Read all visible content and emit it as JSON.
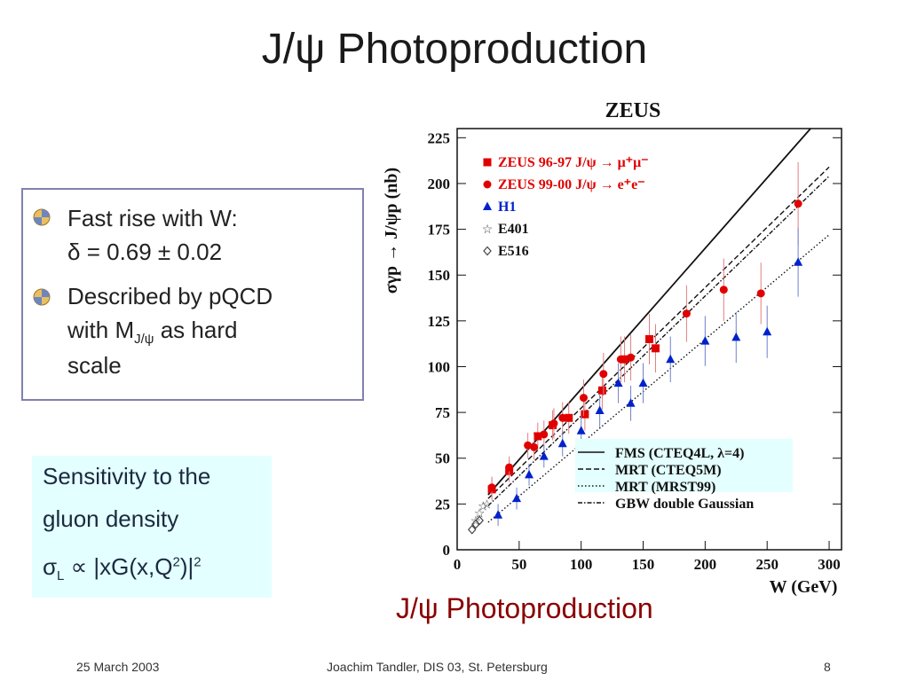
{
  "slide": {
    "title": "J/ψ Photoproduction",
    "bullet1_line1": "Fast rise with W:",
    "bullet1_line2": "δ = 0.69 ± 0.02",
    "bullet2_line1": "Described by pQCD",
    "bullet2_line2_pre": "with M",
    "bullet2_line2_sub": "J/ψ",
    "bullet2_line2_post": " as hard",
    "bullet2_line3": "scale",
    "sens_line1": "Sensitivity to the",
    "sens_line2": "gluon density",
    "sens_formula": "σ",
    "sens_formula_sub": "L",
    "sens_formula_rest": " ∝ |xG(x,Q",
    "sens_formula_sup": "2",
    "sens_formula_end": ")|",
    "sens_formula_sup2": "2",
    "caption": "J/ψ Photoproduction",
    "footer_date": "25 March 2003",
    "footer_author": "Joachim Tandler, DIS 03, St. Petersburg",
    "footer_page": "8"
  },
  "chart_data": {
    "type": "scatter",
    "title": "ZEUS",
    "xlabel": "W (GeV)",
    "ylabel": "σγp → J/ψp (nb)",
    "xlim": [
      0,
      310
    ],
    "ylim": [
      0,
      230
    ],
    "xticks": [
      0,
      50,
      100,
      150,
      200,
      250,
      300
    ],
    "yticks": [
      0,
      25,
      50,
      75,
      100,
      125,
      150,
      175,
      200,
      225
    ],
    "legend_position": "top-left",
    "colors": {
      "zeus": "#e00000",
      "h1": "#0022cc",
      "other": "#444444"
    },
    "series": [
      {
        "name": "ZEUS 96-97 J/ψ → μ⁺μ⁻",
        "marker": "square",
        "x": [
          28,
          42,
          65,
          77,
          90,
          103,
          117,
          135,
          155,
          160
        ],
        "y": [
          33,
          43,
          62,
          68,
          72,
          74,
          87,
          104,
          115,
          110
        ]
      },
      {
        "name": "ZEUS 99-00 J/ψ → e⁺e⁻",
        "marker": "circle",
        "x": [
          28,
          42,
          57,
          62,
          70,
          78,
          85,
          102,
          118,
          132,
          140,
          155,
          185,
          215,
          245,
          275
        ],
        "y": [
          34,
          45,
          57,
          56,
          63,
          69,
          72,
          83,
          96,
          104,
          105,
          115,
          129,
          142,
          140,
          189
        ]
      },
      {
        "name": "H1",
        "marker": "triangle",
        "x": [
          33,
          48,
          58,
          70,
          85,
          100,
          115,
          130,
          140,
          150,
          172,
          200,
          225,
          250,
          275
        ],
        "y": [
          19,
          28,
          41,
          51,
          58,
          65,
          76,
          91,
          80,
          91,
          104,
          114,
          116,
          119,
          157
        ]
      },
      {
        "name": "E401",
        "marker": "star",
        "x": [
          15,
          18,
          21,
          24
        ],
        "y": [
          16,
          20,
          24,
          25
        ]
      },
      {
        "name": "E516",
        "marker": "diamond",
        "x": [
          12,
          15,
          18
        ],
        "y": [
          11,
          14,
          16
        ]
      }
    ],
    "curves": [
      {
        "name": "FMS (CTEQ4L, λ=4)",
        "style": "solid",
        "x": [
          25,
          285
        ],
        "y": [
          30,
          230
        ]
      },
      {
        "name": "MRT (CTEQ5M)",
        "style": "dashed",
        "x": [
          25,
          300
        ],
        "y": [
          28,
          209
        ]
      },
      {
        "name": "MRT (MRST99)",
        "style": "dotted",
        "x": [
          25,
          300
        ],
        "y": [
          15,
          172
        ]
      },
      {
        "name": "GBW double Gaussian",
        "style": "dashdot",
        "x": [
          25,
          300
        ],
        "y": [
          24,
          204
        ]
      }
    ]
  }
}
